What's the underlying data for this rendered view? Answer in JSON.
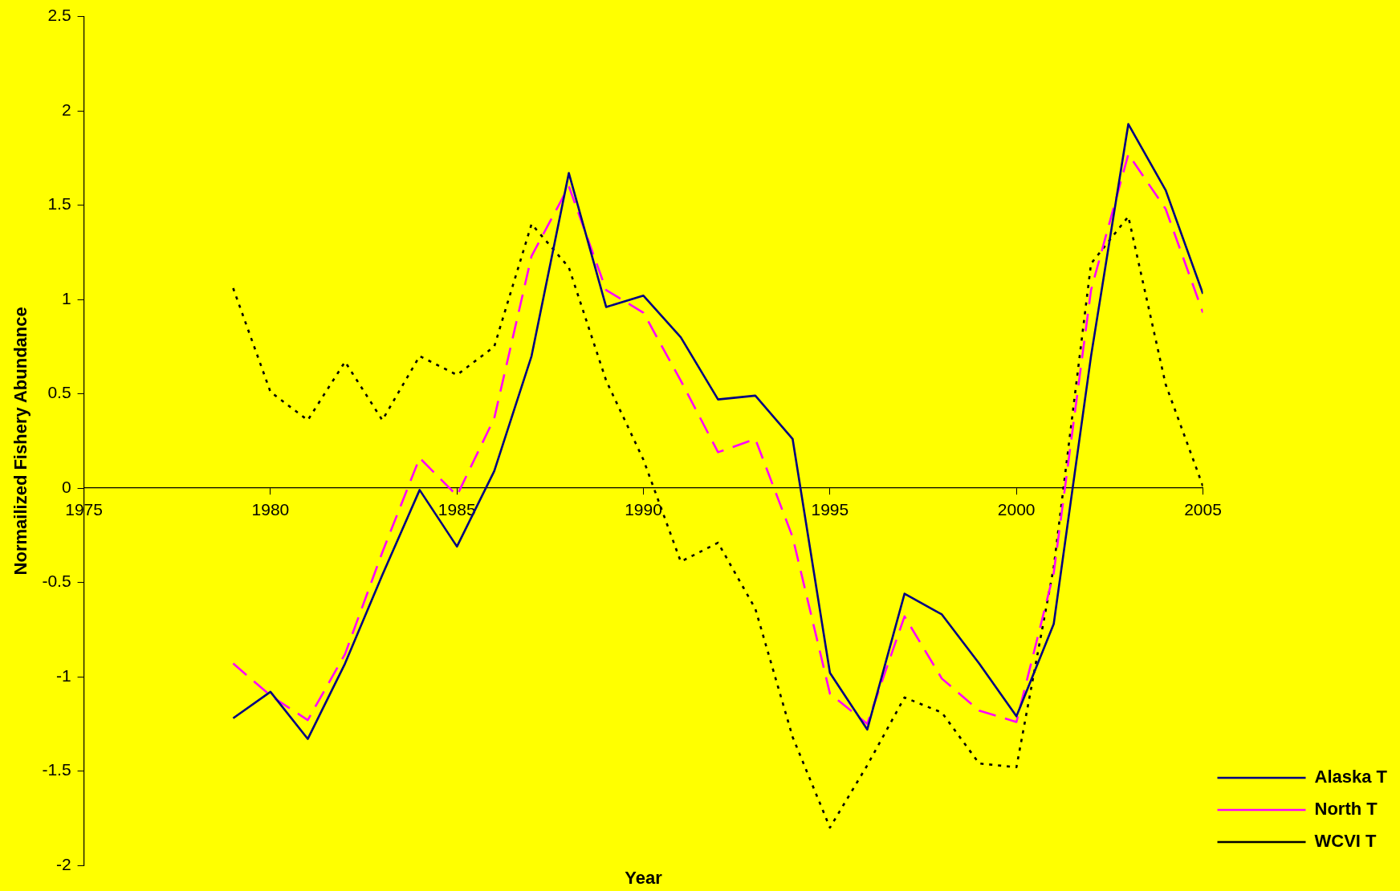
{
  "chart_data": {
    "type": "line",
    "xlabel": "Year",
    "ylabel": "Normailized Fishery Abundance",
    "x": [
      1979,
      1980,
      1981,
      1982,
      1983,
      1984,
      1985,
      1986,
      1987,
      1988,
      1989,
      1990,
      1991,
      1992,
      1993,
      1994,
      1995,
      1996,
      1997,
      1998,
      1999,
      2000,
      2001,
      2002,
      2003,
      2004,
      2005
    ],
    "xlim": [
      1975,
      2005
    ],
    "xticks": [
      1975,
      1980,
      1985,
      1990,
      1995,
      2000,
      2005
    ],
    "ylim": [
      -2,
      2.5
    ],
    "yticks": [
      -2,
      -1.5,
      -1,
      -0.5,
      0,
      0.5,
      1,
      1.5,
      2,
      2.5
    ],
    "grid": false,
    "legend": "bottom right",
    "marker": "none",
    "series": [
      {
        "name": "Alaska T",
        "color": "#000080",
        "line_style": "solid",
        "values": [
          -1.22,
          -1.08,
          -1.33,
          -0.93,
          -0.46,
          -0.01,
          -0.31,
          0.09,
          0.7,
          1.67,
          0.96,
          1.02,
          0.8,
          0.47,
          0.49,
          0.26,
          -0.98,
          -1.28,
          -0.56,
          -0.67,
          -0.93,
          -1.21,
          -0.72,
          0.7,
          1.93,
          1.58,
          1.03
        ]
      },
      {
        "name": "North T",
        "color": "#ff00ff",
        "line_style": "dashed",
        "values": [
          -0.93,
          -1.1,
          -1.23,
          -0.88,
          -0.34,
          0.16,
          -0.04,
          0.37,
          1.23,
          1.6,
          1.05,
          0.93,
          0.57,
          0.19,
          0.26,
          -0.26,
          -1.09,
          -1.25,
          -0.68,
          -1.01,
          -1.18,
          -1.24,
          -0.45,
          1.05,
          1.77,
          1.48,
          0.93
        ]
      },
      {
        "name": "WCVI T",
        "color": "#000000",
        "line_style": "dotted",
        "values": [
          1.06,
          0.51,
          0.36,
          0.67,
          0.36,
          0.7,
          0.6,
          0.75,
          1.4,
          1.17,
          0.57,
          0.15,
          -0.39,
          -0.29,
          -0.64,
          -1.32,
          -1.8,
          -1.47,
          -1.11,
          -1.19,
          -1.46,
          -1.48,
          -0.42,
          1.19,
          1.44,
          0.55,
          0.01
        ]
      }
    ]
  }
}
